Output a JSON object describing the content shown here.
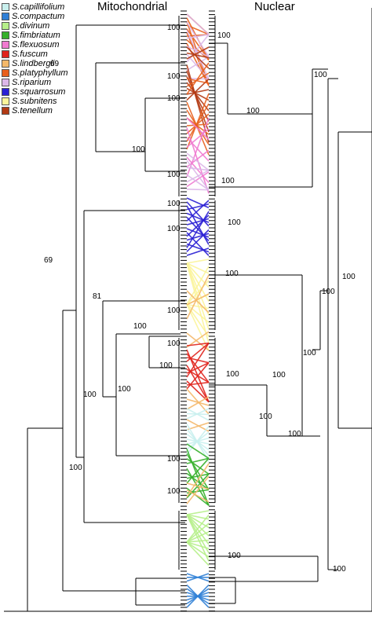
{
  "titles": {
    "left": "Mitochondrial",
    "right": "Nuclear"
  },
  "legend": [
    {
      "label": "S.capillifolium",
      "color": "#c9f0ee"
    },
    {
      "label": "S.compactum",
      "color": "#2f7fd6"
    },
    {
      "label": "S.divinum",
      "color": "#b6ef8a"
    },
    {
      "label": "S.fimbriatum",
      "color": "#36b02b"
    },
    {
      "label": "S.flexuosum",
      "color": "#f07ad0"
    },
    {
      "label": "S.fuscum",
      "color": "#e0231d"
    },
    {
      "label": "S.lindbergii",
      "color": "#f4b86a"
    },
    {
      "label": "S.platyphyllum",
      "color": "#e8601d"
    },
    {
      "label": "S.riparium",
      "color": "#dcb7e8"
    },
    {
      "label": "S.squarrosum",
      "color": "#2a1fd4"
    },
    {
      "label": "S.subnitens",
      "color": "#fbf49a"
    },
    {
      "label": "S.tenellum",
      "color": "#b23a14"
    }
  ],
  "support_labels": {
    "left": [
      "100",
      "69",
      "100",
      "100",
      "100",
      "100",
      "100",
      "69",
      "100",
      "81",
      "100",
      "100",
      "100",
      "100",
      "100",
      "100",
      "100",
      "100",
      "100"
    ],
    "right": [
      "100",
      "100",
      "100",
      "100",
      "100",
      "100",
      "100",
      "100",
      "100",
      "100",
      "100",
      "100",
      "100",
      "100",
      "100"
    ]
  }
}
